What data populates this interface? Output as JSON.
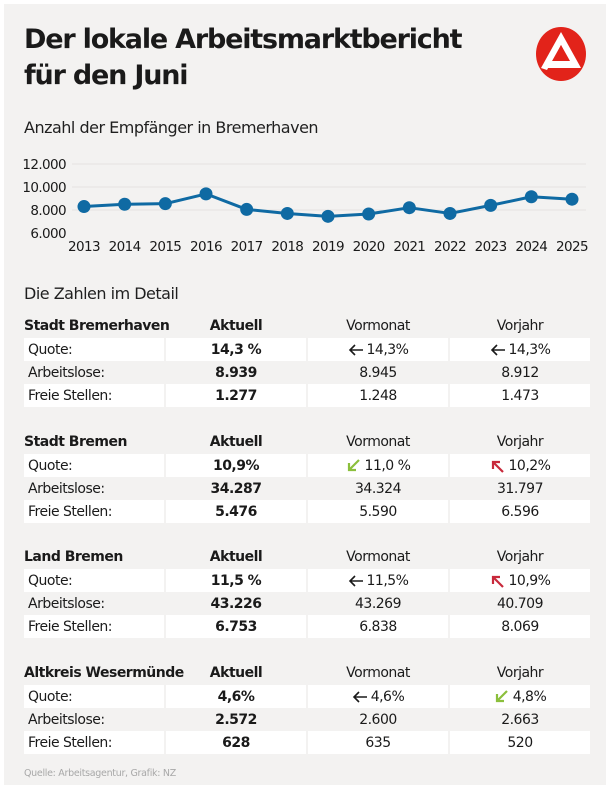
{
  "header": {
    "title_line1": "Der lokale Arbeitsmarktbericht",
    "title_line2": "für den Juni",
    "logo": "arbeitsagentur-logo-icon",
    "brand_color": "#e2231a"
  },
  "chart_section": {
    "subtitle": "Anzahl der Empfänger in Bremerhaven"
  },
  "chart_data": {
    "type": "line",
    "title": "Anzahl der Empfänger in Bremerhaven",
    "xlabel": "",
    "ylabel": "",
    "x": [
      "2013",
      "2014",
      "2015",
      "2016",
      "2017",
      "2018",
      "2019",
      "2020",
      "2021",
      "2022",
      "2023",
      "2024",
      "2025"
    ],
    "series": [
      {
        "name": "Empfänger Bremerhaven",
        "color": "#0f6aa3",
        "values": [
          8300,
          8500,
          8550,
          9400,
          8050,
          7700,
          7450,
          7650,
          8200,
          7700,
          8400,
          9150,
          8939
        ]
      }
    ],
    "ylim": [
      6000,
      12000
    ],
    "yticks": [
      6000,
      8000,
      10000,
      12000
    ],
    "ytick_labels": [
      "6.000",
      "8.000",
      "10.000",
      "12.000"
    ],
    "grid": true,
    "legend": "none"
  },
  "details": {
    "section_title": "Die Zahlen im Detail",
    "col_labels": {
      "aktuell": "Aktuell",
      "vormonat": "Vormonat",
      "vorjahr": "Vorjahr"
    },
    "row_labels": {
      "quote": "Quote:",
      "arbeitslose": "Arbeitslose:",
      "freie": "Freie Stellen:"
    },
    "arrow_colors": {
      "same": "#1a1a1a",
      "down": "#8bbf3c",
      "up": "#c8293b"
    },
    "regions": [
      {
        "name": "Stadt Bremerhaven",
        "quote": {
          "aktuell": "14,3 %",
          "vormonat": "14,3%",
          "vormonat_trend": "same",
          "vorjahr": "14,3%",
          "vorjahr_trend": "same"
        },
        "arbeitslose": {
          "aktuell": "8.939",
          "vormonat": "8.945",
          "vorjahr": "8.912"
        },
        "freie": {
          "aktuell": "1.277",
          "vormonat": "1.248",
          "vorjahr": "1.473"
        }
      },
      {
        "name": "Stadt Bremen",
        "quote": {
          "aktuell": "10,9%",
          "vormonat": "11,0 %",
          "vormonat_trend": "down",
          "vorjahr": "10,2%",
          "vorjahr_trend": "up"
        },
        "arbeitslose": {
          "aktuell": "34.287",
          "vormonat": "34.324",
          "vorjahr": "31.797"
        },
        "freie": {
          "aktuell": "5.476",
          "vormonat": "5.590",
          "vorjahr": "6.596"
        }
      },
      {
        "name": "Land Bremen",
        "quote": {
          "aktuell": "11,5 %",
          "vormonat": "11,5%",
          "vormonat_trend": "same",
          "vorjahr": "10,9%",
          "vorjahr_trend": "up"
        },
        "arbeitslose": {
          "aktuell": "43.226",
          "vormonat": "43.269",
          "vorjahr": "40.709"
        },
        "freie": {
          "aktuell": "6.753",
          "vormonat": "6.838",
          "vorjahr": "8.069"
        }
      },
      {
        "name": "Altkreis Wesermünde",
        "quote": {
          "aktuell": "4,6%",
          "vormonat": "4,6%",
          "vormonat_trend": "same",
          "vorjahr": "4,8%",
          "vorjahr_trend": "down"
        },
        "arbeitslose": {
          "aktuell": "2.572",
          "vormonat": "2.600",
          "vorjahr": "2.663"
        },
        "freie": {
          "aktuell": "628",
          "vormonat": "635",
          "vorjahr": "520"
        }
      }
    ]
  },
  "footer": {
    "source": "Quelle: Arbeitsagentur, Grafik: NZ"
  }
}
